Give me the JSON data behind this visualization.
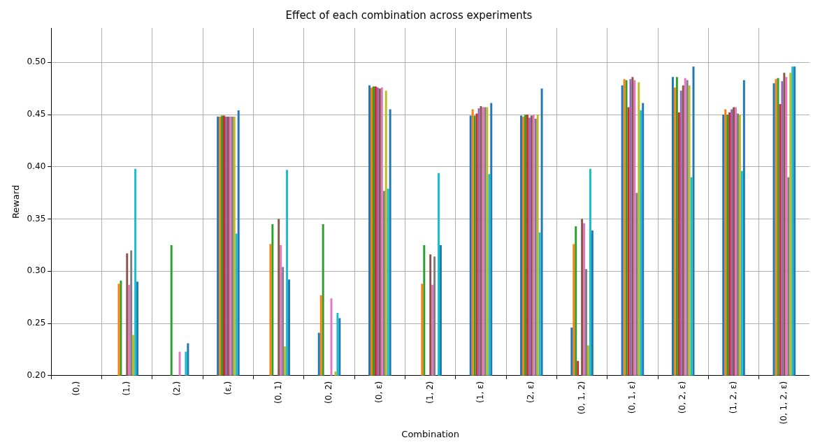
{
  "chart_data": {
    "type": "bar",
    "title": "Effect of each combination across experiments",
    "xlabel": "Combination",
    "ylabel": "Reward",
    "categories": [
      "(0,)",
      "(1,)",
      "(2,)",
      "(ε,)",
      "(0, 1)",
      "(0, 2)",
      "(0, ε)",
      "(1, 2)",
      "(1, ε)",
      "(2, ε)",
      "(0, 1, 2)",
      "(0, 1, ε)",
      "(0, 2, ε)",
      "(1, 2, ε)",
      "(0, 1, 2, ε)"
    ],
    "series": [
      {
        "color": "#1f77b4",
        "values": [
          null,
          null,
          null,
          0.448,
          null,
          0.241,
          0.478,
          null,
          0.449,
          0.449,
          0.246,
          0.478,
          0.486,
          0.45,
          0.48
        ]
      },
      {
        "color": "#ff7f0e",
        "values": [
          null,
          0.288,
          null,
          0.448,
          0.326,
          0.277,
          0.476,
          0.288,
          0.455,
          0.448,
          0.326,
          0.484,
          0.476,
          0.455,
          0.484
        ]
      },
      {
        "color": "#2ca02c",
        "values": [
          null,
          0.291,
          0.325,
          0.449,
          0.345,
          0.345,
          0.477,
          0.325,
          0.449,
          0.45,
          0.343,
          0.483,
          0.486,
          0.45,
          0.485
        ]
      },
      {
        "color": "#d62728",
        "values": [
          null,
          null,
          null,
          0.449,
          null,
          null,
          0.477,
          null,
          0.451,
          0.45,
          0.214,
          0.457,
          0.452,
          0.452,
          0.46
        ]
      },
      {
        "color": "#9467bd",
        "values": [
          null,
          null,
          null,
          0.448,
          null,
          null,
          0.476,
          null,
          0.456,
          0.447,
          null,
          0.484,
          0.473,
          0.455,
          0.482
        ]
      },
      {
        "color": "#8c564b",
        "values": [
          null,
          0.317,
          null,
          0.448,
          0.35,
          null,
          0.475,
          0.316,
          0.458,
          0.449,
          0.35,
          0.486,
          0.478,
          0.457,
          0.49
        ]
      },
      {
        "color": "#e377c2",
        "values": [
          null,
          0.287,
          0.223,
          0.448,
          0.325,
          0.274,
          0.476,
          0.287,
          0.457,
          0.45,
          0.346,
          0.483,
          0.485,
          0.457,
          0.486
        ]
      },
      {
        "color": "#7f7f7f",
        "values": [
          null,
          0.32,
          null,
          0.448,
          0.304,
          null,
          0.377,
          0.314,
          0.457,
          0.446,
          0.302,
          0.375,
          0.483,
          0.451,
          0.39
        ]
      },
      {
        "color": "#bcbd22",
        "values": [
          null,
          0.239,
          null,
          0.448,
          0.228,
          0.204,
          0.473,
          null,
          0.457,
          0.45,
          0.229,
          0.481,
          0.478,
          0.45,
          0.49
        ]
      },
      {
        "color": "#17becf",
        "values": [
          null,
          0.398,
          0.223,
          0.336,
          0.397,
          0.26,
          0.379,
          0.394,
          0.393,
          0.337,
          0.398,
          0.454,
          0.39,
          0.396,
          0.496
        ]
      },
      {
        "color": "#1f77b4",
        "values": [
          null,
          0.29,
          0.231,
          0.454,
          0.292,
          0.255,
          0.455,
          0.325,
          0.461,
          0.475,
          0.339,
          0.461,
          0.496,
          0.483,
          0.496
        ]
      }
    ],
    "ylim": [
      0.2,
      0.533
    ],
    "yticks": [
      {
        "value": 0.2,
        "label": "0.20"
      },
      {
        "value": 0.25,
        "label": "0.25"
      },
      {
        "value": 0.3,
        "label": "0.30"
      },
      {
        "value": 0.35,
        "label": "0.35"
      },
      {
        "value": 0.4,
        "label": "0.40"
      },
      {
        "value": 0.45,
        "label": "0.45"
      },
      {
        "value": 0.5,
        "label": "0.50"
      }
    ],
    "grid": true,
    "legend": false
  }
}
